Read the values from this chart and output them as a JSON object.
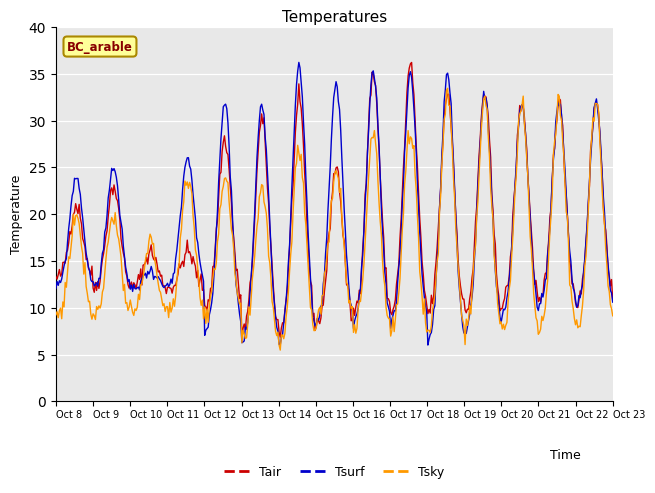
{
  "title": "Temperatures",
  "xlabel": "Time",
  "ylabel": "Temperature",
  "site_label": "BC_arable",
  "ylim": [
    0,
    40
  ],
  "yticks": [
    0,
    5,
    10,
    15,
    20,
    25,
    30,
    35,
    40
  ],
  "legend_labels": [
    "Tair",
    "Tsurf",
    "Tsky"
  ],
  "line_colors": [
    "#cc0000",
    "#0000cc",
    "#ff9900"
  ],
  "background_color": "#e8e8e8",
  "figure_color": "#ffffff",
  "n_days": 15,
  "hours_per_day": 24,
  "tair_max": [
    21,
    23,
    16,
    16,
    28,
    30,
    32,
    25,
    35,
    36,
    33,
    33,
    32,
    32,
    32
  ],
  "tsurf_max": [
    24,
    25,
    14,
    26,
    32,
    32,
    36,
    34,
    35,
    35,
    35,
    33,
    32,
    32,
    32
  ],
  "tsky_max": [
    20,
    20,
    17,
    24,
    24,
    23,
    27,
    25,
    29,
    29,
    33,
    32,
    32,
    32,
    32
  ],
  "tair_min": [
    13,
    12,
    12,
    12,
    10,
    7,
    7,
    8,
    9,
    9,
    9,
    9,
    10,
    10,
    10
  ],
  "tsurf_min": [
    12,
    12,
    12,
    12,
    7,
    6,
    6,
    8,
    8,
    8,
    6,
    7,
    9,
    10,
    10
  ],
  "tsky_min": [
    9,
    9,
    9,
    9,
    9,
    6,
    6,
    9,
    7,
    7,
    7,
    7,
    7,
    7,
    8
  ],
  "x_tick_days": [
    8,
    9,
    10,
    11,
    12,
    13,
    14,
    15,
    16,
    17,
    18,
    19,
    20,
    21,
    22,
    23
  ]
}
